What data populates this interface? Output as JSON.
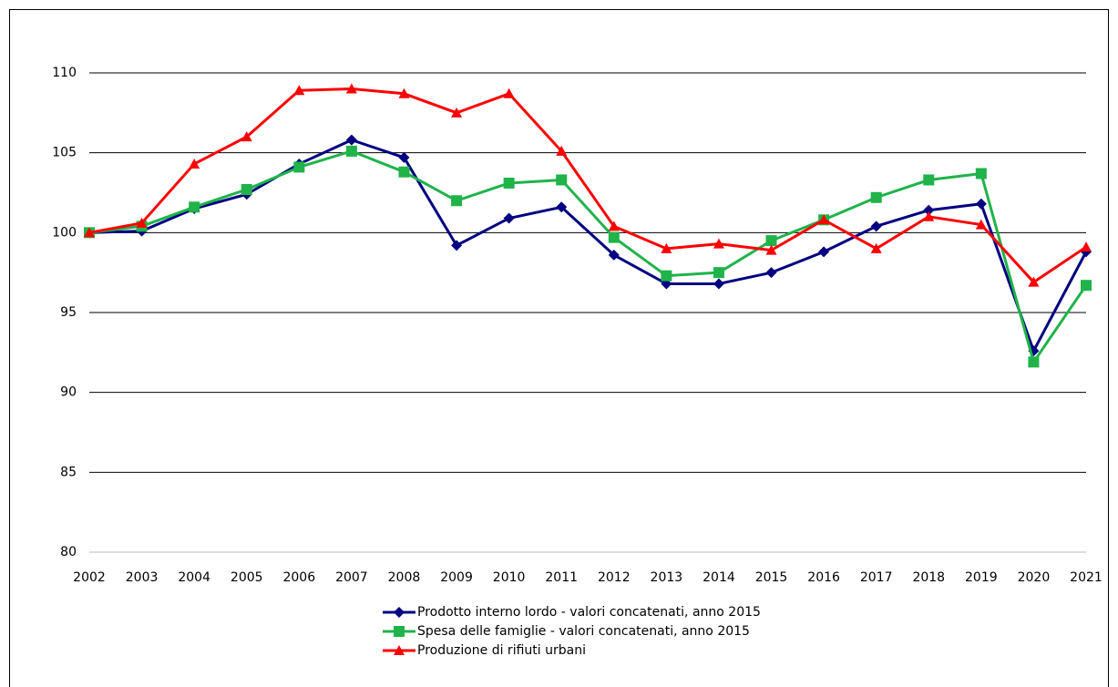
{
  "chart_data": {
    "type": "line",
    "categories": [
      "2002",
      "2003",
      "2004",
      "2005",
      "2006",
      "2007",
      "2008",
      "2009",
      "2010",
      "2011",
      "2012",
      "2013",
      "2014",
      "2015",
      "2016",
      "2017",
      "2018",
      "2019",
      "2020",
      "2021"
    ],
    "series": [
      {
        "name": "Prodotto interno lordo - valori concatenati, anno 2015",
        "color": "#000080",
        "marker": "diamond",
        "values": [
          100,
          100.1,
          101.5,
          102.4,
          104.3,
          105.8,
          104.7,
          99.2,
          100.9,
          101.6,
          98.6,
          96.8,
          96.8,
          97.5,
          98.8,
          100.4,
          101.4,
          101.8,
          92.6,
          98.8
        ]
      },
      {
        "name": "Spesa delle famiglie - valori concatenati, anno 2015",
        "color": "#1fb34a",
        "marker": "square",
        "values": [
          100,
          100.4,
          101.6,
          102.7,
          104.1,
          105.1,
          103.8,
          102.0,
          103.1,
          103.3,
          99.7,
          97.3,
          97.5,
          99.5,
          100.8,
          102.2,
          103.3,
          103.7,
          91.9,
          96.7
        ]
      },
      {
        "name": "Produzione di rifiuti urbani",
        "color": "#ff0000",
        "marker": "triangle",
        "values": [
          100,
          100.6,
          104.3,
          106.0,
          108.9,
          109.0,
          108.7,
          107.5,
          108.7,
          105.1,
          100.4,
          99.0,
          99.3,
          98.9,
          100.8,
          99.0,
          101.0,
          100.5,
          96.9,
          99.1
        ]
      }
    ],
    "ylim": [
      80,
      110
    ],
    "yticks": [
      80,
      85,
      90,
      95,
      100,
      105,
      110
    ],
    "grid": true,
    "legend": "bottom"
  }
}
